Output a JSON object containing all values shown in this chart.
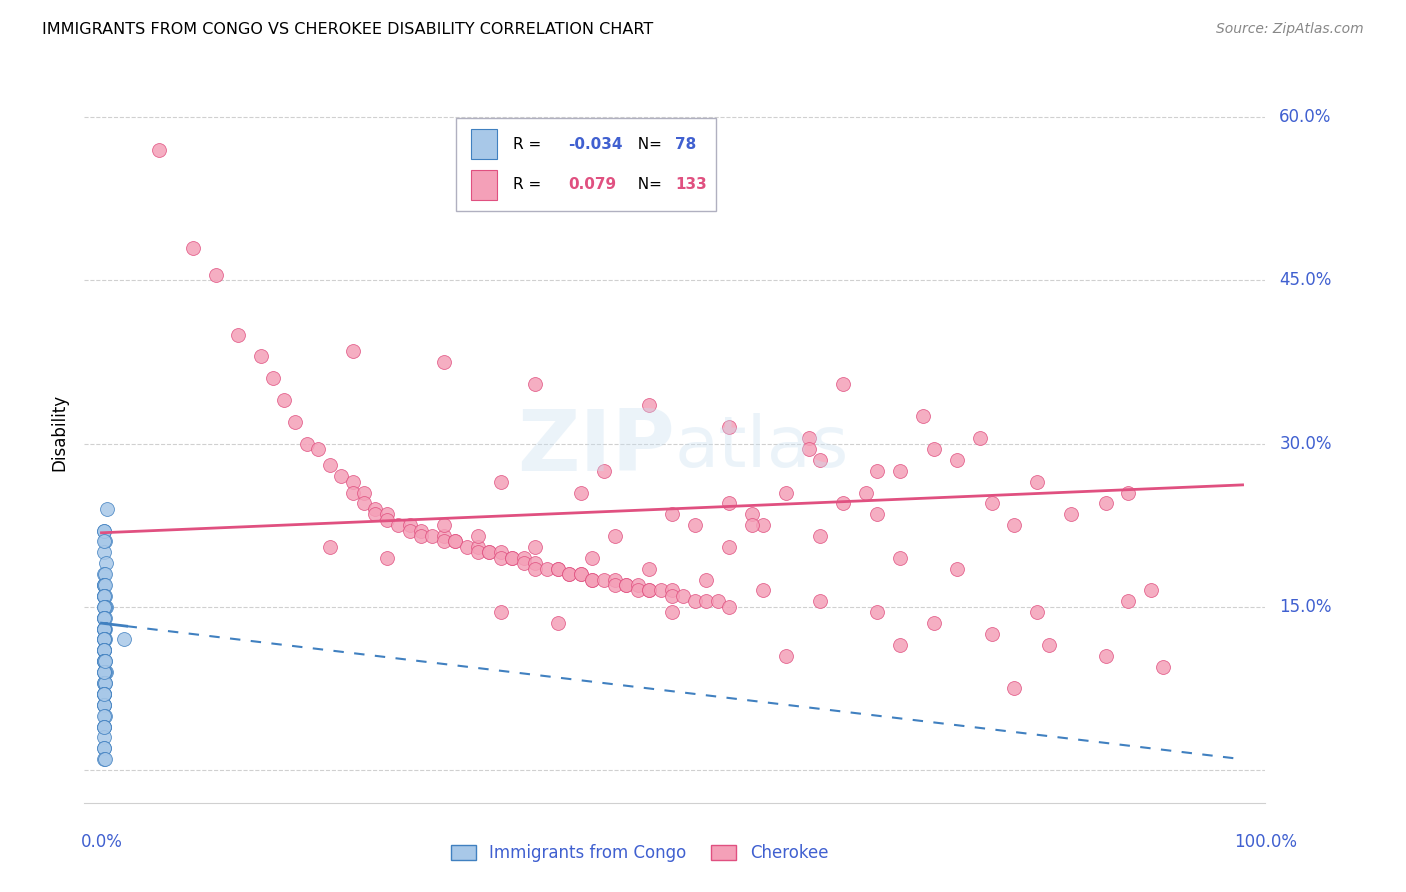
{
  "title": "IMMIGRANTS FROM CONGO VS CHEROKEE DISABILITY CORRELATION CHART",
  "source": "Source: ZipAtlas.com",
  "ylabel": "Disability",
  "y_ticks": [
    0.0,
    0.15,
    0.3,
    0.45,
    0.6
  ],
  "y_tick_labels": [
    "",
    "15.0%",
    "30.0%",
    "45.0%",
    "60.0%"
  ],
  "color_blue": "#a8c8e8",
  "color_pink": "#f4a0b8",
  "color_blue_dark": "#4080c0",
  "color_pink_dark": "#e05080",
  "color_blue_text": "#4060d0",
  "color_gray_grid": "#d0d0d0",
  "legend_line1_R": "-0.034",
  "legend_line1_N": "78",
  "legend_line2_R": "0.079",
  "legend_line2_N": "133",
  "congo_x": [
    0.002,
    0.003,
    0.002,
    0.004,
    0.002,
    0.003,
    0.002,
    0.002,
    0.002,
    0.003,
    0.002,
    0.002,
    0.002,
    0.003,
    0.002,
    0.003,
    0.004,
    0.002,
    0.003,
    0.002,
    0.002,
    0.002,
    0.002,
    0.003,
    0.002,
    0.002,
    0.003,
    0.002,
    0.002,
    0.002,
    0.002,
    0.002,
    0.002,
    0.003,
    0.002,
    0.002,
    0.002,
    0.002,
    0.002,
    0.002,
    0.002,
    0.002,
    0.002,
    0.003,
    0.002,
    0.002,
    0.002,
    0.004,
    0.003,
    0.002,
    0.003,
    0.002,
    0.002,
    0.003,
    0.002,
    0.002,
    0.002,
    0.002,
    0.002,
    0.002,
    0.002,
    0.003,
    0.002,
    0.002,
    0.002,
    0.002,
    0.002,
    0.002,
    0.002,
    0.003,
    0.002,
    0.002,
    0.02,
    0.002,
    0.002,
    0.002,
    0.005,
    0.003
  ],
  "congo_y": [
    0.22,
    0.21,
    0.2,
    0.19,
    0.18,
    0.18,
    0.17,
    0.17,
    0.17,
    0.17,
    0.16,
    0.16,
    0.16,
    0.16,
    0.16,
    0.15,
    0.15,
    0.15,
    0.15,
    0.15,
    0.14,
    0.14,
    0.14,
    0.14,
    0.14,
    0.13,
    0.13,
    0.13,
    0.13,
    0.13,
    0.13,
    0.12,
    0.12,
    0.12,
    0.12,
    0.12,
    0.11,
    0.11,
    0.11,
    0.11,
    0.11,
    0.1,
    0.1,
    0.1,
    0.1,
    0.1,
    0.09,
    0.09,
    0.09,
    0.09,
    0.08,
    0.08,
    0.08,
    0.08,
    0.07,
    0.07,
    0.07,
    0.07,
    0.06,
    0.06,
    0.06,
    0.05,
    0.05,
    0.04,
    0.04,
    0.03,
    0.02,
    0.02,
    0.01,
    0.01,
    0.22,
    0.21,
    0.12,
    0.09,
    0.07,
    0.04,
    0.24,
    0.1
  ],
  "cherokee_x": [
    0.05,
    0.08,
    0.1,
    0.12,
    0.14,
    0.15,
    0.16,
    0.17,
    0.18,
    0.19,
    0.2,
    0.21,
    0.22,
    0.22,
    0.23,
    0.23,
    0.24,
    0.24,
    0.25,
    0.25,
    0.26,
    0.27,
    0.27,
    0.28,
    0.28,
    0.29,
    0.3,
    0.3,
    0.31,
    0.31,
    0.32,
    0.33,
    0.33,
    0.34,
    0.34,
    0.35,
    0.35,
    0.36,
    0.36,
    0.37,
    0.37,
    0.38,
    0.38,
    0.39,
    0.4,
    0.4,
    0.41,
    0.41,
    0.42,
    0.42,
    0.43,
    0.43,
    0.44,
    0.45,
    0.45,
    0.46,
    0.46,
    0.47,
    0.47,
    0.48,
    0.48,
    0.49,
    0.5,
    0.5,
    0.51,
    0.52,
    0.53,
    0.54,
    0.55,
    0.55,
    0.57,
    0.58,
    0.6,
    0.62,
    0.63,
    0.65,
    0.67,
    0.68,
    0.7,
    0.72,
    0.73,
    0.75,
    0.77,
    0.78,
    0.8,
    0.82,
    0.85,
    0.88,
    0.9,
    0.92,
    0.35,
    0.4,
    0.5,
    0.6,
    0.7,
    0.8,
    0.9,
    0.45,
    0.55,
    0.65,
    0.3,
    0.33,
    0.38,
    0.43,
    0.48,
    0.53,
    0.58,
    0.63,
    0.68,
    0.73,
    0.78,
    0.83,
    0.88,
    0.93,
    0.35,
    0.42,
    0.5,
    0.57,
    0.63,
    0.7,
    0.48,
    0.55,
    0.62,
    0.68,
    0.75,
    0.82,
    0.22,
    0.3,
    0.38,
    0.44,
    0.52,
    0.2,
    0.25
  ],
  "cherokee_y": [
    0.57,
    0.48,
    0.455,
    0.4,
    0.38,
    0.36,
    0.34,
    0.32,
    0.3,
    0.295,
    0.28,
    0.27,
    0.265,
    0.255,
    0.255,
    0.245,
    0.24,
    0.235,
    0.235,
    0.23,
    0.225,
    0.225,
    0.22,
    0.22,
    0.215,
    0.215,
    0.215,
    0.21,
    0.21,
    0.21,
    0.205,
    0.205,
    0.2,
    0.2,
    0.2,
    0.2,
    0.195,
    0.195,
    0.195,
    0.195,
    0.19,
    0.19,
    0.185,
    0.185,
    0.185,
    0.185,
    0.18,
    0.18,
    0.18,
    0.18,
    0.175,
    0.175,
    0.175,
    0.175,
    0.17,
    0.17,
    0.17,
    0.17,
    0.165,
    0.165,
    0.165,
    0.165,
    0.165,
    0.16,
    0.16,
    0.155,
    0.155,
    0.155,
    0.15,
    0.245,
    0.235,
    0.225,
    0.255,
    0.305,
    0.285,
    0.355,
    0.255,
    0.235,
    0.275,
    0.325,
    0.295,
    0.285,
    0.305,
    0.245,
    0.225,
    0.265,
    0.235,
    0.245,
    0.255,
    0.165,
    0.145,
    0.135,
    0.145,
    0.105,
    0.115,
    0.075,
    0.155,
    0.215,
    0.205,
    0.245,
    0.225,
    0.215,
    0.205,
    0.195,
    0.185,
    0.175,
    0.165,
    0.155,
    0.145,
    0.135,
    0.125,
    0.115,
    0.105,
    0.095,
    0.265,
    0.255,
    0.235,
    0.225,
    0.215,
    0.195,
    0.335,
    0.315,
    0.295,
    0.275,
    0.185,
    0.145,
    0.385,
    0.375,
    0.355,
    0.275,
    0.225,
    0.205,
    0.195
  ]
}
